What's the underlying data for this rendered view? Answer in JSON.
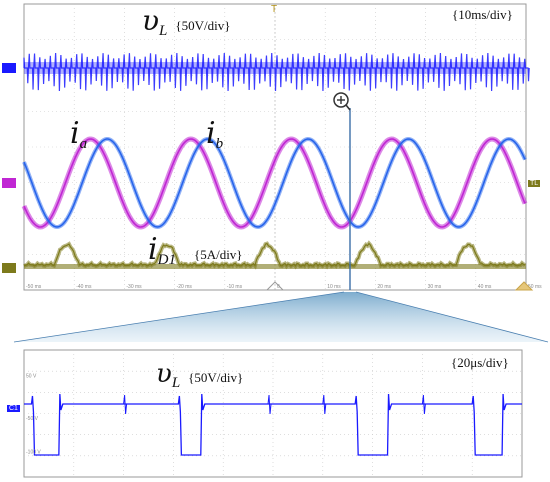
{
  "top_panel": {
    "time_div": "{10ms/div}",
    "vl_symbol": "υ",
    "vl_sub": "L",
    "vl_scale": "{50V/div}",
    "ia_symbol": "i",
    "ia_sub": "a",
    "ib_symbol": "i",
    "ib_sub": "b",
    "id1_symbol": "i",
    "id1_sub": "D1",
    "id1_scale": "{5A/div}",
    "trigger_tag": "T",
    "ch_tag": "C",
    "tl_tag": "TL",
    "zoom_icon": "zoom-in-icon"
  },
  "bottom_panel": {
    "time_div": "{20μs/div}",
    "vl_symbol": "υ",
    "vl_sub": "L",
    "vl_scale": "{50V/div}",
    "ch_tag": "C1"
  },
  "colors": {
    "vl": "#1a1aff",
    "ia": "#c026d3",
    "ib": "#2563eb",
    "id1": "#7d7a1c",
    "grid": "#c9c9c9",
    "zoom_line": "#3b6ea8"
  },
  "chart_data": [
    {
      "type": "line",
      "time_per_div_ms": 10,
      "divisions_x": 10,
      "x_tick_labels": [
        "-50 ms",
        "-40 ms",
        "-30 ms",
        "-20 ms",
        "-10 ms",
        "0",
        "10 ms",
        "20 ms",
        "30 ms",
        "40 ms",
        "50 ms"
      ],
      "series": [
        {
          "name": "υL",
          "scale": "50V/div",
          "description_values": {
            "pulse_period_ms": 1.05,
            "amplitude_div": 1.1
          }
        },
        {
          "name": "ia",
          "scale": "5A/div",
          "period_ms": 20,
          "amplitude_div": 1.6,
          "phase_deg": 0
        },
        {
          "name": "ib",
          "scale": "5A/div",
          "period_ms": 20,
          "amplitude_div": 1.6,
          "phase_deg": -120
        },
        {
          "name": "iD1",
          "scale": "5A/div",
          "period_ms": 20,
          "peak_div": 0.9
        }
      ]
    },
    {
      "type": "line",
      "time_per_div_us": 20,
      "divisions_x": 10,
      "series": [
        {
          "name": "υL",
          "scale": "50V/div",
          "levels_div": [
            0,
            -1.5
          ],
          "low_pulses_us": [
            [
              3,
              14
            ],
            [
              62,
              71
            ],
            [
              133,
              146
            ],
            [
              180,
              192
            ]
          ]
        }
      ]
    }
  ]
}
